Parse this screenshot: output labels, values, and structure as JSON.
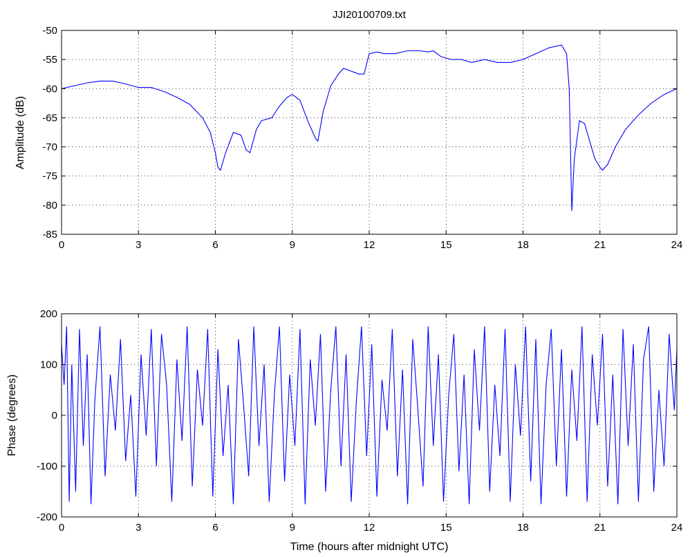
{
  "chart_data": [
    {
      "type": "line",
      "title": "JJI20100709.txt",
      "xlabel": "",
      "ylabel": "Amplitude (dB)",
      "xlim": [
        0,
        24
      ],
      "ylim": [
        -85,
        -50
      ],
      "xticks": [
        0,
        3,
        6,
        9,
        12,
        15,
        18,
        21,
        24
      ],
      "yticks": [
        -85,
        -80,
        -75,
        -70,
        -65,
        -60,
        -55,
        -50
      ],
      "grid": true,
      "color": "#0000ff",
      "series": [
        {
          "x": [
            0,
            0.5,
            1.0,
            1.5,
            2.0,
            2.5,
            3.0,
            3.5,
            4.0,
            4.5,
            5.0,
            5.5,
            5.8,
            6.0,
            6.1,
            6.2,
            6.4,
            6.7,
            7.0,
            7.2,
            7.35,
            7.6,
            7.8,
            8.2,
            8.5,
            8.8,
            9.0,
            9.3,
            9.6,
            9.9,
            10.0,
            10.2,
            10.5,
            10.8,
            11.0,
            11.3,
            11.6,
            11.8,
            12.0,
            12.3,
            12.6,
            13.0,
            13.5,
            14.0,
            14.3,
            14.5,
            14.8,
            15.2,
            15.6,
            16.0,
            16.5,
            17.0,
            17.5,
            18.0,
            18.5,
            19.0,
            19.5,
            19.7,
            19.8,
            19.85,
            19.9,
            20.0,
            20.2,
            20.4,
            20.6,
            20.8,
            21.0,
            21.1,
            21.3,
            21.6,
            22.0,
            22.5,
            23.0,
            23.5,
            24.0
          ],
          "values": [
            -60,
            -59.5,
            -59,
            -58.7,
            -58.7,
            -59.2,
            -59.8,
            -59.8,
            -60.5,
            -61.5,
            -62.7,
            -65,
            -67.5,
            -71,
            -73.5,
            -74,
            -71,
            -67.5,
            -68,
            -70.5,
            -71,
            -67,
            -65.5,
            -65,
            -63,
            -61.5,
            -61,
            -62,
            -65.5,
            -68.5,
            -69,
            -64,
            -59.5,
            -57.5,
            -56.5,
            -57,
            -57.5,
            -57.5,
            -54,
            -53.7,
            -54,
            -54,
            -53.5,
            -53.5,
            -53.7,
            -53.5,
            -54.5,
            -55,
            -55,
            -55.5,
            -55,
            -55.5,
            -55.5,
            -55,
            -54,
            -53,
            -52.5,
            -54,
            -60,
            -70,
            -81,
            -72,
            -65.5,
            -66,
            -69,
            -72,
            -73.5,
            -74,
            -73,
            -70,
            -67,
            -64.5,
            -62.5,
            -61,
            -60
          ]
        }
      ]
    },
    {
      "type": "line",
      "title": "",
      "xlabel": "Time (hours after midnight UTC)",
      "ylabel": "Phase (degrees)",
      "xlim": [
        0,
        24
      ],
      "ylim": [
        -200,
        200
      ],
      "xticks": [
        0,
        3,
        6,
        9,
        12,
        15,
        18,
        21,
        24
      ],
      "yticks": [
        -200,
        -100,
        0,
        100,
        200
      ],
      "grid": true,
      "color": "#0000ff",
      "series": [
        {
          "x": [
            0,
            0.1,
            0.2,
            0.3,
            0.4,
            0.55,
            0.7,
            0.85,
            1.0,
            1.15,
            1.3,
            1.5,
            1.7,
            1.9,
            2.1,
            2.3,
            2.5,
            2.7,
            2.9,
            3.1,
            3.3,
            3.5,
            3.7,
            3.9,
            4.1,
            4.3,
            4.5,
            4.7,
            4.9,
            5.1,
            5.3,
            5.5,
            5.7,
            5.9,
            6.1,
            6.3,
            6.5,
            6.7,
            6.9,
            7.1,
            7.3,
            7.5,
            7.7,
            7.9,
            8.1,
            8.3,
            8.5,
            8.7,
            8.9,
            9.1,
            9.3,
            9.5,
            9.7,
            9.9,
            10.1,
            10.3,
            10.5,
            10.7,
            10.9,
            11.1,
            11.3,
            11.5,
            11.7,
            11.9,
            12.1,
            12.3,
            12.5,
            12.7,
            12.9,
            13.1,
            13.3,
            13.5,
            13.7,
            13.9,
            14.1,
            14.3,
            14.5,
            14.7,
            14.9,
            15.1,
            15.3,
            15.5,
            15.7,
            15.9,
            16.1,
            16.3,
            16.5,
            16.7,
            16.9,
            17.1,
            17.3,
            17.5,
            17.7,
            17.9,
            18.1,
            18.3,
            18.5,
            18.7,
            18.9,
            19.1,
            19.3,
            19.5,
            19.7,
            19.9,
            20.1,
            20.3,
            20.5,
            20.7,
            20.9,
            21.1,
            21.3,
            21.5,
            21.7,
            21.9,
            22.1,
            22.3,
            22.5,
            22.7,
            22.9,
            23.1,
            23.3,
            23.5,
            23.7,
            23.9,
            24.0
          ],
          "values": [
            140,
            60,
            175,
            -170,
            100,
            -150,
            170,
            -60,
            120,
            -175,
            30,
            175,
            -120,
            80,
            -30,
            150,
            -90,
            40,
            -160,
            120,
            -40,
            170,
            -100,
            160,
            60,
            -170,
            110,
            -50,
            175,
            -140,
            90,
            -20,
            170,
            -160,
            130,
            -80,
            60,
            -175,
            150,
            20,
            -120,
            175,
            -60,
            100,
            -170,
            40,
            175,
            -130,
            80,
            -60,
            170,
            -175,
            110,
            -20,
            160,
            -150,
            50,
            175,
            -100,
            120,
            -170,
            30,
            175,
            -80,
            140,
            -160,
            70,
            -30,
            170,
            -120,
            90,
            -175,
            150,
            10,
            -140,
            175,
            -60,
            120,
            -170,
            40,
            160,
            -110,
            80,
            -175,
            130,
            -30,
            175,
            -150,
            60,
            -80,
            170,
            -170,
            100,
            -40,
            175,
            -130,
            150,
            -175,
            60,
            170,
            -100,
            130,
            -160,
            90,
            -50,
            175,
            -170,
            120,
            -20,
            160,
            -140,
            80,
            -175,
            170,
            -60,
            140,
            -170,
            110,
            175,
            -150,
            50,
            -100,
            160,
            10,
            130
          ]
        }
      ]
    }
  ]
}
